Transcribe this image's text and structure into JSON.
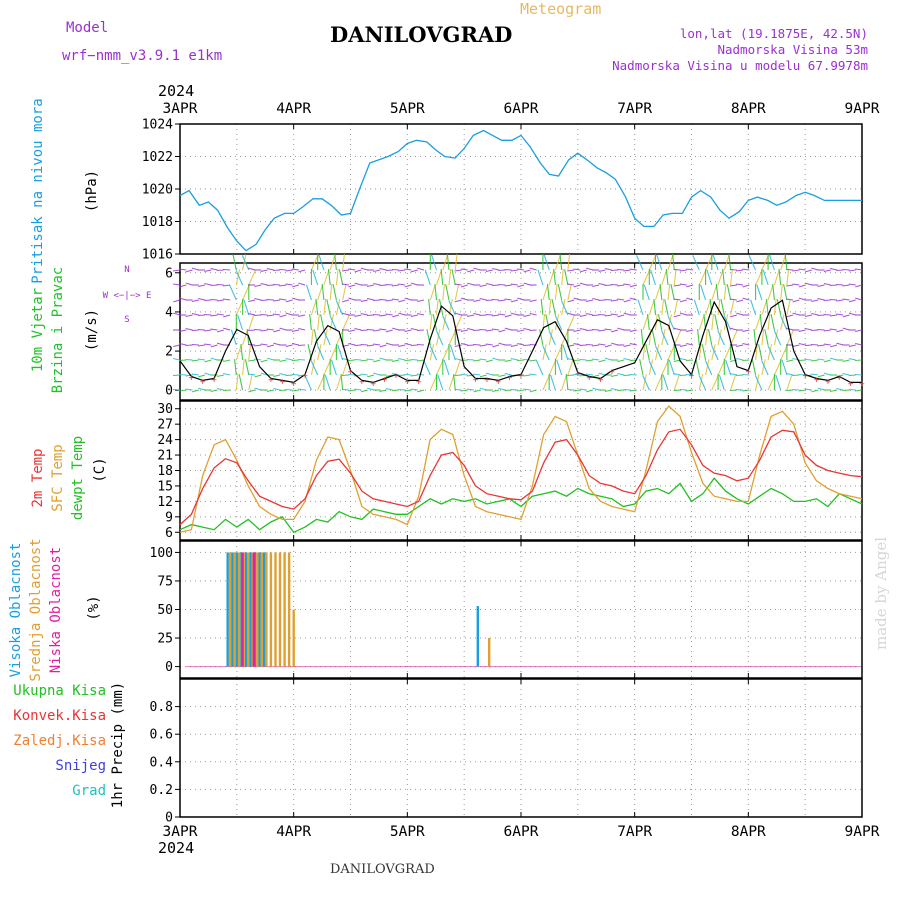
{
  "header": {
    "title": "DANILOVGRAD",
    "meteogram_label": "Meteogram",
    "model_label": "Model",
    "model_name": "wrf−nmm_v3.9.1  e1km",
    "location_lonlat": "lon,lat (19.1875E, 42.5N)",
    "elevation": "Nadmorska Visina 53m",
    "model_elevation": "Nadmorska Visina u modelu 67.9978m"
  },
  "footer": {
    "station": "DANILOVGRAD",
    "credit": "made by Angel"
  },
  "colors": {
    "pressure": "#1a9ee0",
    "wind_label": "#22c02a",
    "temp2m": "#e83535",
    "sfc_temp": "#e0a030",
    "dewpt": "#22c022",
    "cloud_high": "#1a9ee0",
    "cloud_mid": "#e0a030",
    "cloud_low": "#e020a0",
    "purple": "#9b30d0"
  },
  "chart_data": [
    {
      "type": "line",
      "panel": "pressure",
      "year": "2024",
      "xticks": [
        "3APR",
        "4APR",
        "5APR",
        "6APR",
        "7APR",
        "8APR",
        "9APR"
      ],
      "ylabel_name": "Pritisak na nivou mora",
      "ylabel_unit": "(hPa)",
      "ylim": [
        1016,
        1024
      ],
      "yticks": [
        1016,
        1018,
        1020,
        1022,
        1024
      ],
      "grid": true,
      "series": [
        {
          "x": [
            0,
            0.08,
            0.17,
            0.25,
            0.33,
            0.42,
            0.5,
            0.58,
            0.67,
            0.75,
            0.83,
            0.92,
            1.0,
            1.08,
            1.17,
            1.25,
            1.33,
            1.42,
            1.5,
            1.58,
            1.67,
            1.75,
            1.83,
            1.92,
            2.0,
            2.08,
            2.17,
            2.25,
            2.33,
            2.42,
            2.5,
            2.58,
            2.67,
            2.75,
            2.83,
            2.92,
            3.0,
            3.08,
            3.17,
            3.25,
            3.33,
            3.42,
            3.5,
            3.58,
            3.67,
            3.75,
            3.83,
            3.92,
            4.0,
            4.08,
            4.17,
            4.25,
            4.33,
            4.42,
            4.5,
            4.58,
            4.67,
            4.75,
            4.83,
            4.92,
            5.0,
            5.08,
            5.17,
            5.25,
            5.33,
            5.42,
            5.5,
            5.58,
            5.67,
            5.75,
            5.83,
            5.92,
            6.0
          ],
          "values": [
            1019.6,
            1019.9,
            1019.0,
            1019.2,
            1018.7,
            1017.6,
            1016.8,
            1016.2,
            1016.6,
            1017.5,
            1018.2,
            1018.5,
            1018.5,
            1018.9,
            1019.4,
            1019.4,
            1019.0,
            1018.4,
            1018.5,
            1020.0,
            1021.6,
            1021.8,
            1022.0,
            1022.3,
            1022.8,
            1023.0,
            1022.9,
            1022.4,
            1022.0,
            1021.9,
            1022.5,
            1023.3,
            1023.6,
            1023.3,
            1023.0,
            1023.0,
            1023.3,
            1022.6,
            1021.6,
            1020.9,
            1020.8,
            1021.8,
            1022.2,
            1021.8,
            1021.3,
            1021.0,
            1020.6,
            1019.5,
            1018.2,
            1017.7,
            1017.7,
            1018.4,
            1018.5,
            1018.5,
            1019.5,
            1019.9,
            1019.5,
            1018.7,
            1018.2,
            1018.6,
            1019.3,
            1019.5,
            1019.3,
            1019.0,
            1019.2,
            1019.6,
            1019.8,
            1019.6,
            1019.3,
            1019.3,
            1019.3,
            1019.3,
            1019.3
          ]
        }
      ]
    },
    {
      "type": "line",
      "panel": "wind",
      "ylabel_name1": "10m Vjetar",
      "ylabel_name2": "Brzina i Pravac",
      "ylabel_unit": "(m/s)",
      "compass_rose": "W <−|−> E",
      "compass_n": "N",
      "compass_s": "S",
      "ylim": [
        -0.5,
        6.5
      ],
      "yticks": [
        0,
        2,
        4,
        6
      ],
      "grid": true,
      "series": [
        {
          "name": "speed",
          "x": [
            0,
            0.1,
            0.2,
            0.3,
            0.4,
            0.5,
            0.6,
            0.7,
            0.8,
            0.9,
            1.0,
            1.1,
            1.2,
            1.3,
            1.4,
            1.5,
            1.6,
            1.7,
            1.8,
            1.9,
            2.0,
            2.1,
            2.2,
            2.3,
            2.4,
            2.5,
            2.6,
            2.7,
            2.8,
            2.9,
            3.0,
            3.1,
            3.2,
            3.3,
            3.4,
            3.5,
            3.6,
            3.7,
            3.8,
            3.9,
            4.0,
            4.1,
            4.2,
            4.3,
            4.4,
            4.5,
            4.6,
            4.7,
            4.8,
            4.9,
            5.0,
            5.1,
            5.2,
            5.3,
            5.4,
            5.5,
            5.6,
            5.7,
            5.8,
            5.9,
            6.0
          ],
          "values": [
            1.5,
            0.7,
            0.5,
            0.6,
            2.0,
            3.1,
            2.8,
            1.2,
            0.6,
            0.5,
            0.4,
            0.8,
            2.5,
            3.3,
            3.0,
            1.0,
            0.5,
            0.4,
            0.6,
            0.8,
            0.5,
            0.5,
            2.6,
            4.3,
            3.8,
            1.2,
            0.6,
            0.6,
            0.5,
            0.7,
            0.8,
            2.0,
            3.2,
            3.5,
            2.5,
            0.9,
            0.7,
            0.6,
            1.0,
            1.2,
            1.4,
            2.5,
            3.6,
            3.3,
            1.5,
            0.8,
            2.8,
            4.5,
            3.5,
            1.2,
            1.0,
            2.8,
            4.2,
            4.6,
            2.0,
            0.8,
            0.6,
            0.5,
            0.7,
            0.4,
            0.4
          ]
        }
      ]
    },
    {
      "type": "line",
      "panel": "temperature",
      "ylabel_2m": "2m Temp",
      "ylabel_sfc": "SFC Temp",
      "ylabel_dew": "dewpt Temp",
      "ylabel_unit": "(C)",
      "ylim": [
        4.5,
        31.5
      ],
      "yticks": [
        6,
        9,
        12,
        15,
        18,
        21,
        24,
        27,
        30
      ],
      "grid": true,
      "series": [
        {
          "name": "temp2m",
          "x": [
            0,
            0.1,
            0.2,
            0.3,
            0.4,
            0.5,
            0.6,
            0.7,
            0.8,
            0.9,
            1.0,
            1.1,
            1.2,
            1.3,
            1.4,
            1.5,
            1.6,
            1.7,
            1.8,
            1.9,
            2.0,
            2.1,
            2.2,
            2.3,
            2.4,
            2.5,
            2.6,
            2.7,
            2.8,
            2.9,
            3.0,
            3.1,
            3.2,
            3.3,
            3.4,
            3.5,
            3.6,
            3.7,
            3.8,
            3.9,
            4.0,
            4.1,
            4.2,
            4.3,
            4.4,
            4.5,
            4.6,
            4.7,
            4.8,
            4.9,
            5.0,
            5.1,
            5.2,
            5.3,
            5.4,
            5.5,
            5.6,
            5.7,
            5.8,
            5.9,
            6.0
          ],
          "values": [
            7.5,
            9.5,
            14.5,
            18.5,
            20.3,
            19.5,
            16.0,
            13.0,
            12.0,
            11.0,
            10.5,
            12.5,
            17.0,
            19.8,
            20.2,
            17.5,
            14.0,
            12.5,
            12.0,
            11.5,
            11.0,
            12.0,
            17.0,
            21.0,
            21.5,
            19.0,
            15.0,
            13.5,
            13.0,
            12.5,
            12.3,
            14.0,
            19.5,
            23.5,
            24.0,
            21.0,
            17.0,
            15.5,
            15.0,
            14.0,
            13.5,
            17.0,
            22.0,
            25.5,
            26.0,
            23.0,
            19.0,
            17.5,
            17.0,
            16.0,
            16.5,
            20.0,
            24.5,
            25.8,
            25.5,
            21.0,
            19.0,
            18.0,
            17.5,
            17.0,
            16.8
          ]
        },
        {
          "name": "sfc_temp",
          "x": [
            0,
            0.1,
            0.2,
            0.3,
            0.4,
            0.5,
            0.6,
            0.7,
            0.8,
            0.9,
            1.0,
            1.1,
            1.2,
            1.3,
            1.4,
            1.5,
            1.6,
            1.7,
            1.8,
            1.9,
            2.0,
            2.1,
            2.2,
            2.3,
            2.4,
            2.5,
            2.6,
            2.7,
            2.8,
            2.9,
            3.0,
            3.1,
            3.2,
            3.3,
            3.4,
            3.5,
            3.6,
            3.7,
            3.8,
            3.9,
            4.0,
            4.1,
            4.2,
            4.3,
            4.4,
            4.5,
            4.6,
            4.7,
            4.8,
            4.9,
            5.0,
            5.1,
            5.2,
            5.3,
            5.4,
            5.5,
            5.6,
            5.7,
            5.8,
            5.9,
            6.0
          ],
          "values": [
            6.0,
            6.5,
            17.0,
            23.0,
            24.0,
            20.0,
            15.0,
            11.0,
            9.5,
            8.5,
            8.5,
            12.0,
            20.0,
            24.5,
            24.0,
            18.0,
            11.0,
            9.5,
            9.0,
            8.5,
            7.5,
            13.0,
            24.0,
            26.0,
            25.0,
            17.0,
            11.0,
            10.0,
            9.5,
            9.0,
            8.5,
            15.0,
            25.0,
            28.5,
            27.5,
            21.0,
            14.5,
            12.0,
            11.0,
            10.5,
            10.0,
            18.0,
            27.5,
            30.5,
            28.5,
            21.5,
            15.5,
            13.0,
            12.5,
            12.0,
            12.0,
            21.0,
            28.5,
            29.5,
            27.0,
            19.5,
            16.0,
            14.5,
            13.5,
            13.0,
            12.5
          ]
        },
        {
          "name": "dewpt",
          "x": [
            0,
            0.1,
            0.2,
            0.3,
            0.4,
            0.5,
            0.6,
            0.7,
            0.8,
            0.9,
            1.0,
            1.1,
            1.2,
            1.3,
            1.4,
            1.5,
            1.6,
            1.7,
            1.8,
            1.9,
            2.0,
            2.1,
            2.2,
            2.3,
            2.4,
            2.5,
            2.6,
            2.7,
            2.8,
            2.9,
            3.0,
            3.1,
            3.2,
            3.3,
            3.4,
            3.5,
            3.6,
            3.7,
            3.8,
            3.9,
            4.0,
            4.1,
            4.2,
            4.3,
            4.4,
            4.5,
            4.6,
            4.7,
            4.8,
            4.9,
            5.0,
            5.1,
            5.2,
            5.3,
            5.4,
            5.5,
            5.6,
            5.7,
            5.8,
            5.9,
            6.0
          ],
          "values": [
            6.5,
            7.5,
            7.0,
            6.5,
            8.5,
            7.0,
            8.5,
            6.5,
            8.0,
            9.0,
            6.0,
            7.0,
            8.5,
            8.0,
            10.0,
            9.0,
            8.5,
            10.5,
            10.0,
            9.5,
            9.5,
            11.0,
            12.5,
            11.5,
            12.5,
            12.0,
            12.5,
            11.5,
            12.0,
            12.5,
            11.0,
            13.0,
            13.5,
            14.0,
            13.0,
            14.5,
            13.5,
            13.0,
            12.5,
            11.0,
            11.5,
            14.0,
            14.5,
            13.5,
            15.5,
            12.0,
            13.5,
            16.5,
            14.0,
            12.5,
            11.5,
            13.0,
            14.5,
            13.5,
            12.0,
            12.0,
            12.5,
            11.0,
            13.5,
            12.5,
            11.5
          ]
        }
      ]
    },
    {
      "type": "bar",
      "panel": "clouds",
      "ylabel_high": "Visoka Oblacnost",
      "ylabel_mid": "Srednja Oblacnost",
      "ylabel_low": "Niska Oblacnost",
      "ylabel_unit": "(%)",
      "ylim": [
        0,
        100
      ],
      "yticks": [
        0,
        25,
        50,
        75,
        100
      ],
      "grid": true,
      "series": [
        {
          "name": "high",
          "x": [
            0.42,
            0.46,
            0.5,
            0.54,
            0.58,
            0.62,
            0.66,
            0.7,
            0.74,
            2.62
          ],
          "values": [
            100,
            100,
            100,
            100,
            100,
            100,
            100,
            100,
            100,
            53
          ]
        },
        {
          "name": "mid",
          "x": [
            0.44,
            0.48,
            0.52,
            0.56,
            0.6,
            0.64,
            0.68,
            0.72,
            0.76,
            0.8,
            0.84,
            0.88,
            0.92,
            0.96,
            1.0,
            2.72
          ],
          "values": [
            100,
            100,
            100,
            100,
            100,
            100,
            100,
            100,
            100,
            100,
            100,
            100,
            100,
            100,
            50,
            25
          ]
        },
        {
          "name": "low",
          "x": [
            0.55,
            0.65
          ],
          "values": [
            100,
            100
          ]
        }
      ]
    },
    {
      "type": "bar",
      "panel": "precipitation",
      "legend": [
        {
          "name": "Ukupna  Kisa",
          "color": "#22c022"
        },
        {
          "name": "Konvek.Kisa",
          "color": "#e83535"
        },
        {
          "name": "Zaledj.Kisa",
          "color": "#f08030"
        },
        {
          "name": "Snijeg",
          "color": "#4040e0"
        },
        {
          "name": "Grad",
          "color": "#20c0c0"
        }
      ],
      "ylabel_unit": "1hr Precip (mm)",
      "ylim": [
        0,
        1
      ],
      "yticks": [
        0,
        0.2,
        0.4,
        0.6,
        0.8
      ],
      "ytick_labels": [
        "0",
        "0.2",
        "0.4",
        "0.6",
        "0.8"
      ],
      "grid": true,
      "bottom_year": "2024",
      "series": []
    }
  ]
}
